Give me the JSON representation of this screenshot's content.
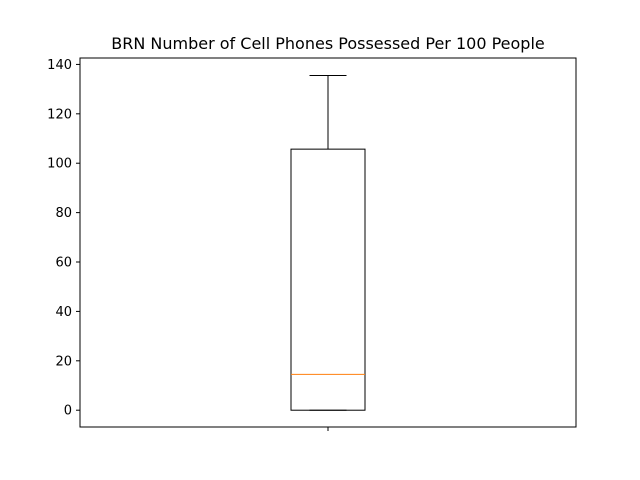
{
  "chart_data": {
    "type": "box",
    "title": "BRN Number of Cell Phones Possessed Per 100 People",
    "xlabel": "",
    "ylabel": "",
    "ylim": [
      -6.8,
      142.6
    ],
    "yticks": [
      0,
      20,
      40,
      60,
      80,
      100,
      120,
      140
    ],
    "xticks": [
      ""
    ],
    "grid": false,
    "box": {
      "whisker_low": 0,
      "q1": 0,
      "median": 14.5,
      "q3": 105.7,
      "whisker_high": 135.5
    },
    "colors": {
      "box": "#000000",
      "median": "#ff7f0e",
      "axes": "#000000"
    }
  }
}
